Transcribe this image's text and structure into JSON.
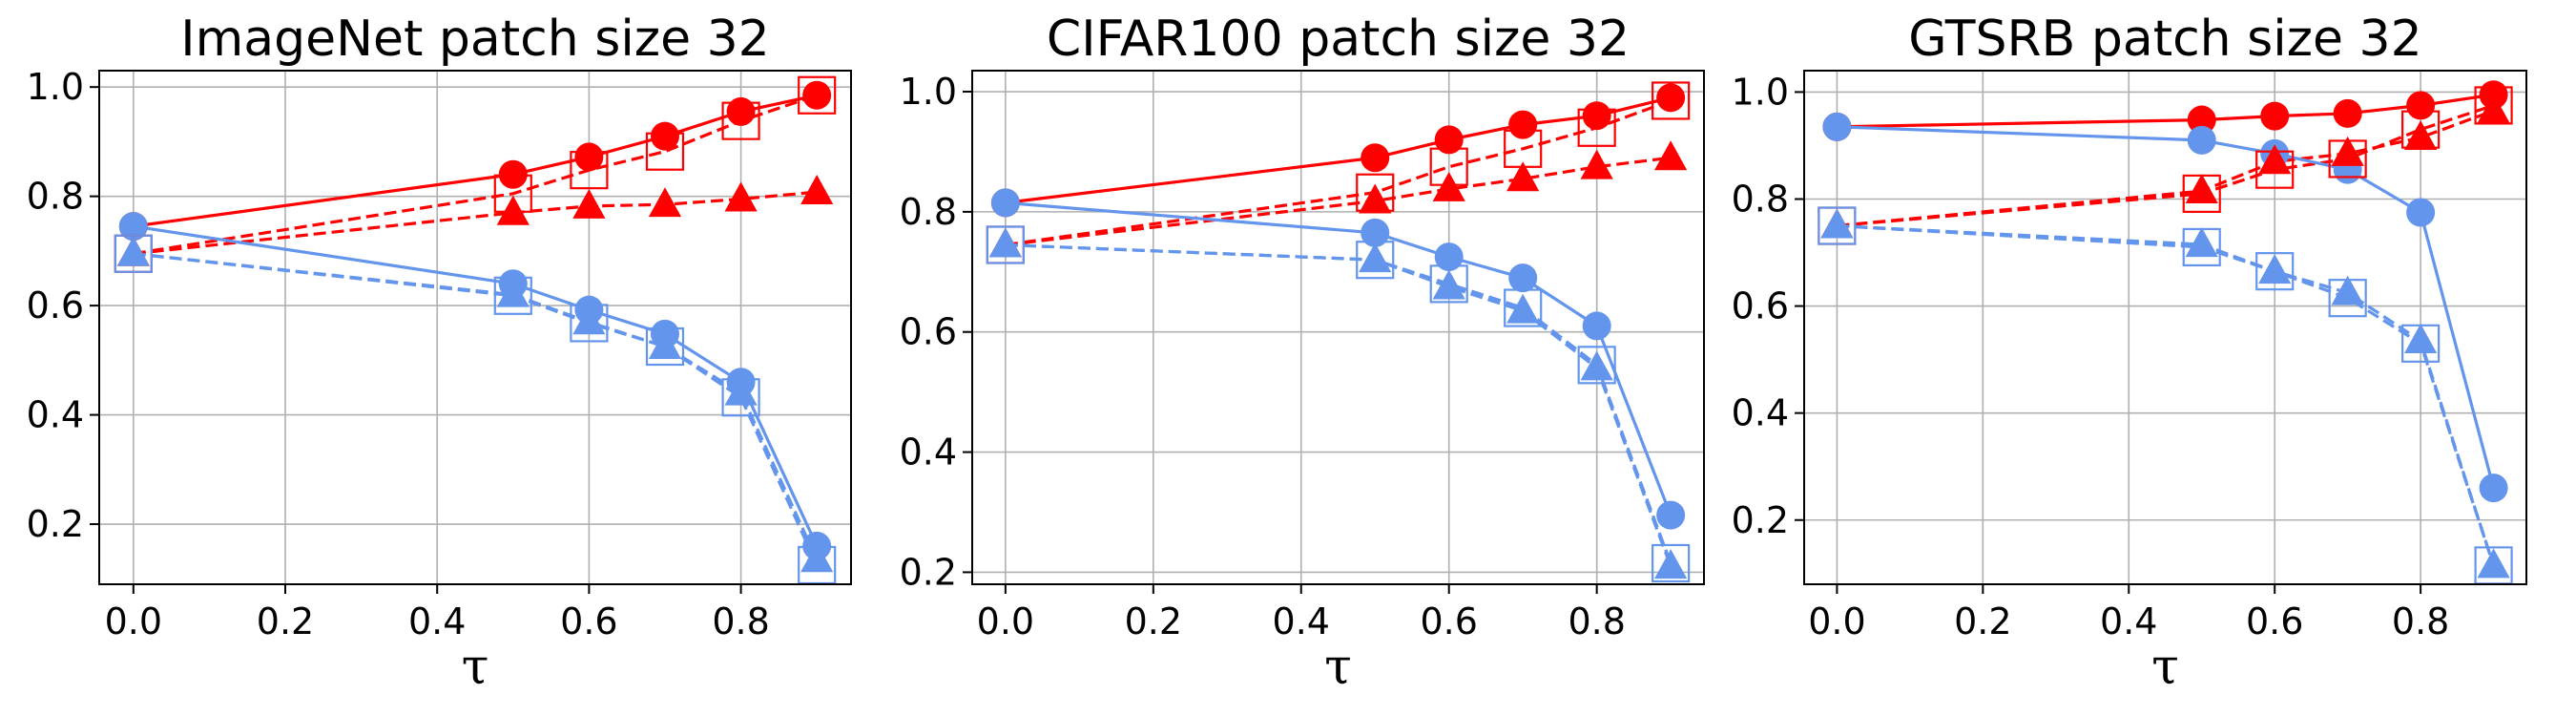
{
  "chart_data": [
    {
      "type": "line",
      "title": "ImageNet patch size 32",
      "xlabel": "τ",
      "ylabel": "",
      "xlim": [
        -0.045,
        0.945
      ],
      "ylim": [
        0.09,
        1.03
      ],
      "xticks": [
        0.0,
        0.2,
        0.4,
        0.6,
        0.8
      ],
      "xtick_labels": [
        "0.0",
        "0.2",
        "0.4",
        "0.6",
        "0.8"
      ],
      "yticks": [
        0.2,
        0.4,
        0.6,
        0.8,
        1.0
      ],
      "ytick_labels": [
        "0.2",
        "0.4",
        "0.6",
        "0.8",
        "1.0"
      ],
      "grid": true,
      "x": [
        0.0,
        0.5,
        0.6,
        0.7,
        0.8,
        0.9
      ],
      "series": [
        {
          "name": "red circle solid",
          "color": "#ff0000",
          "marker": "circle",
          "linestyle": "solid",
          "values": [
            0.745,
            0.84,
            0.872,
            0.91,
            0.955,
            0.985
          ]
        },
        {
          "name": "red square dashed",
          "color": "#ff0000",
          "marker": "square",
          "linestyle": "dashed",
          "values": [
            0.695,
            0.805,
            0.848,
            0.882,
            0.938,
            0.985
          ]
        },
        {
          "name": "red triangle dashed",
          "color": "#ff0000",
          "marker": "triangle",
          "linestyle": "dashed",
          "values": [
            0.695,
            0.77,
            0.782,
            0.785,
            0.795,
            0.808
          ]
        },
        {
          "name": "blue circle solid",
          "color": "#6495ed",
          "marker": "circle",
          "linestyle": "solid",
          "values": [
            0.745,
            0.64,
            0.592,
            0.548,
            0.46,
            0.16
          ]
        },
        {
          "name": "blue square dashed",
          "color": "#6495ed",
          "marker": "square",
          "linestyle": "dashed",
          "values": [
            0.695,
            0.618,
            0.568,
            0.525,
            0.432,
            0.125
          ]
        },
        {
          "name": "blue triangle dashed",
          "color": "#6495ed",
          "marker": "triangle",
          "linestyle": "dashed",
          "values": [
            0.695,
            0.62,
            0.57,
            0.525,
            0.44,
            0.135
          ]
        }
      ]
    },
    {
      "type": "line",
      "title": "CIFAR100 patch size 32",
      "xlabel": "τ",
      "ylabel": "",
      "xlim": [
        -0.045,
        0.945
      ],
      "ylim": [
        0.18,
        1.035
      ],
      "xticks": [
        0.0,
        0.2,
        0.4,
        0.6,
        0.8
      ],
      "xtick_labels": [
        "0.0",
        "0.2",
        "0.4",
        "0.6",
        "0.8"
      ],
      "yticks": [
        0.2,
        0.4,
        0.6,
        0.8,
        1.0
      ],
      "ytick_labels": [
        "0.2",
        "0.4",
        "0.6",
        "0.8",
        "1.0"
      ],
      "grid": true,
      "x": [
        0.0,
        0.5,
        0.6,
        0.7,
        0.8,
        0.9
      ],
      "series": [
        {
          "name": "red circle solid",
          "color": "#ff0000",
          "marker": "circle",
          "linestyle": "solid",
          "values": [
            0.815,
            0.89,
            0.92,
            0.945,
            0.96,
            0.99
          ]
        },
        {
          "name": "red square dashed",
          "color": "#ff0000",
          "marker": "square",
          "linestyle": "dashed",
          "values": [
            0.745,
            0.832,
            0.875,
            0.905,
            0.94,
            0.985
          ]
        },
        {
          "name": "red triangle dashed",
          "color": "#ff0000",
          "marker": "triangle",
          "linestyle": "dashed",
          "values": [
            0.745,
            0.818,
            0.838,
            0.855,
            0.875,
            0.89
          ]
        },
        {
          "name": "blue circle solid",
          "color": "#6495ed",
          "marker": "circle",
          "linestyle": "solid",
          "values": [
            0.815,
            0.765,
            0.725,
            0.69,
            0.61,
            0.295
          ]
        },
        {
          "name": "blue square dashed",
          "color": "#6495ed",
          "marker": "square",
          "linestyle": "dashed",
          "values": [
            0.745,
            0.72,
            0.68,
            0.64,
            0.545,
            0.215
          ]
        },
        {
          "name": "blue triangle dashed",
          "color": "#6495ed",
          "marker": "triangle",
          "linestyle": "dashed",
          "values": [
            0.745,
            0.72,
            0.675,
            0.635,
            0.54,
            0.21
          ]
        }
      ]
    },
    {
      "type": "line",
      "title": "GTSRB patch size 32",
      "xlabel": "τ",
      "ylabel": "",
      "xlim": [
        -0.045,
        0.945
      ],
      "ylim": [
        0.08,
        1.04
      ],
      "xticks": [
        0.0,
        0.2,
        0.4,
        0.6,
        0.8
      ],
      "xtick_labels": [
        "0.0",
        "0.2",
        "0.4",
        "0.6",
        "0.8"
      ],
      "yticks": [
        0.2,
        0.4,
        0.6,
        0.8,
        1.0
      ],
      "ytick_labels": [
        "0.2",
        "0.4",
        "0.6",
        "0.8",
        "1.0"
      ],
      "grid": true,
      "x": [
        0.0,
        0.5,
        0.6,
        0.7,
        0.8,
        0.9
      ],
      "series": [
        {
          "name": "red circle solid",
          "color": "#ff0000",
          "marker": "circle",
          "linestyle": "solid",
          "values": [
            0.935,
            0.948,
            0.955,
            0.96,
            0.975,
            0.995
          ]
        },
        {
          "name": "red square dashed",
          "color": "#ff0000",
          "marker": "square",
          "linestyle": "dashed",
          "values": [
            0.75,
            0.81,
            0.855,
            0.875,
            0.93,
            0.975
          ]
        },
        {
          "name": "red triangle dashed",
          "color": "#ff0000",
          "marker": "triangle",
          "linestyle": "dashed",
          "values": [
            0.75,
            0.815,
            0.87,
            0.885,
            0.915,
            0.965
          ]
        },
        {
          "name": "blue circle solid",
          "color": "#6495ed",
          "marker": "circle",
          "linestyle": "solid",
          "values": [
            0.935,
            0.91,
            0.885,
            0.855,
            0.775,
            0.26
          ]
        },
        {
          "name": "blue square dashed",
          "color": "#6495ed",
          "marker": "square",
          "linestyle": "dashed",
          "values": [
            0.75,
            0.71,
            0.665,
            0.615,
            0.53,
            0.115
          ]
        },
        {
          "name": "blue triangle dashed",
          "color": "#6495ed",
          "marker": "triangle",
          "linestyle": "dashed",
          "values": [
            0.75,
            0.715,
            0.665,
            0.625,
            0.535,
            0.115
          ]
        }
      ]
    }
  ]
}
